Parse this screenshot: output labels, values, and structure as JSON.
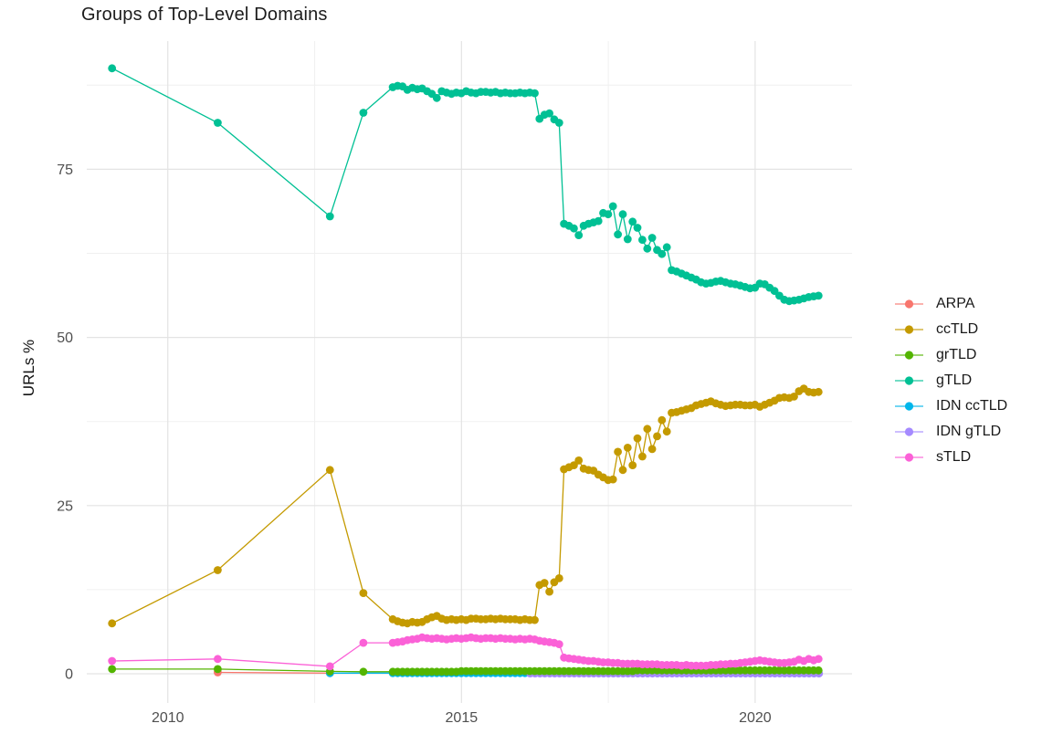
{
  "title": "Groups of Top-Level Domains",
  "colors": {
    "background": "#ffffff",
    "grid_major": "#e3e3e3",
    "grid_minor": "#f0f0f0",
    "axis_text": "#4f4f4f",
    "title_text": "#1c1c1c"
  },
  "chart_data": {
    "type": "line",
    "title": "Groups of Top-Level Domains",
    "xlabel": "",
    "ylabel": "URLs %",
    "grid": true,
    "legend_position": "right",
    "x_range": [
      2008.62,
      2021.65
    ],
    "y_range": [
      -4.34,
      94.05
    ],
    "x_ticks": [
      {
        "value": 2010,
        "label": "2010"
      },
      {
        "value": 2015,
        "label": "2015"
      },
      {
        "value": 2020,
        "label": "2020"
      }
    ],
    "y_ticks": [
      {
        "value": 0,
        "label": "0"
      },
      {
        "value": 25,
        "label": "25"
      },
      {
        "value": 50,
        "label": "50"
      },
      {
        "value": 75,
        "label": "75"
      }
    ],
    "x_minor": [
      2012.5,
      2017.5
    ],
    "y_minor": [
      12.5,
      37.5,
      62.5,
      87.5
    ],
    "series": [
      {
        "name": "ARPA",
        "color": "#F8766D",
        "z": 0,
        "points": [
          [
            2010.85,
            0.2
          ],
          [
            2012.76,
            0.1
          ]
        ]
      },
      {
        "name": "ccTLD",
        "color": "#C49A00",
        "z": 1,
        "points": [
          [
            2009.05,
            7.5
          ],
          [
            2010.85,
            15.4
          ],
          [
            2012.76,
            30.3
          ],
          [
            2013.33,
            12.0
          ]
        ],
        "monthly": {
          "x0": 2013.83,
          "step": 0.08333,
          "y": [
            8.1,
            7.8,
            7.6,
            7.5,
            7.7,
            7.6,
            7.7,
            8.1,
            8.4,
            8.6,
            8.2,
            8.0,
            8.1,
            8.0,
            8.1,
            8.0,
            8.2,
            8.2,
            8.1,
            8.1,
            8.2,
            8.1,
            8.2,
            8.1,
            8.1,
            8.1,
            8.0,
            8.1,
            8.0,
            8.0,
            13.2,
            13.5,
            12.2,
            13.6,
            14.2,
            30.4,
            30.7,
            31.0,
            31.7,
            30.5,
            30.3,
            30.2,
            29.6,
            29.2,
            28.8,
            28.9,
            33.0,
            30.3,
            33.6,
            31.0,
            35.0,
            32.3,
            36.4,
            33.4,
            35.3,
            37.7,
            36.0,
            38.8,
            38.9,
            39.1,
            39.3,
            39.5,
            39.9,
            40.1,
            40.3,
            40.5,
            40.2,
            40.0,
            39.8,
            39.9,
            40.0,
            40.0,
            39.9,
            39.9,
            40.0,
            39.7,
            40.0,
            40.3,
            40.6,
            41.0,
            41.1,
            41.0,
            41.2,
            42.0,
            42.4,
            41.9,
            41.8,
            41.9
          ]
        }
      },
      {
        "name": "grTLD",
        "color": "#53B400",
        "z": 4,
        "points": [
          [
            2009.05,
            0.7
          ],
          [
            2010.85,
            0.7
          ],
          [
            2012.76,
            0.35
          ],
          [
            2013.33,
            0.3
          ]
        ],
        "monthly": {
          "x0": 2013.83,
          "step": 0.08333,
          "y": [
            0.3,
            0.3,
            0.3,
            0.3,
            0.3,
            0.3,
            0.3,
            0.3,
            0.3,
            0.3,
            0.3,
            0.3,
            0.3,
            0.3,
            0.4,
            0.4,
            0.4,
            0.4,
            0.4,
            0.4,
            0.4,
            0.4,
            0.4,
            0.4,
            0.4,
            0.4,
            0.4,
            0.4,
            0.4,
            0.4,
            0.4,
            0.4,
            0.4,
            0.4,
            0.4,
            0.4,
            0.4,
            0.4,
            0.4,
            0.4,
            0.4,
            0.4,
            0.4,
            0.4,
            0.4,
            0.4,
            0.4,
            0.4,
            0.4,
            0.4,
            0.5,
            0.5,
            0.5,
            0.5,
            0.5,
            0.5,
            0.5,
            0.5,
            0.5,
            0.5,
            0.5,
            0.5,
            0.5,
            0.5,
            0.5,
            0.5,
            0.5,
            0.5,
            0.5,
            0.5,
            0.5,
            0.5,
            0.5,
            0.5,
            0.5,
            0.5,
            0.5,
            0.5,
            0.5,
            0.5,
            0.5,
            0.5,
            0.5,
            0.5,
            0.5,
            0.5,
            0.5,
            0.5
          ]
        }
      },
      {
        "name": "gTLD",
        "color": "#00C094",
        "z": 5,
        "points": [
          [
            2009.05,
            90.0
          ],
          [
            2010.85,
            81.9
          ],
          [
            2012.76,
            68.0
          ],
          [
            2013.33,
            83.4
          ]
        ],
        "monthly": {
          "x0": 2013.83,
          "step": 0.08333,
          "y": [
            87.2,
            87.4,
            87.3,
            86.8,
            87.1,
            86.9,
            87.0,
            86.6,
            86.2,
            85.6,
            86.6,
            86.4,
            86.2,
            86.4,
            86.3,
            86.6,
            86.4,
            86.3,
            86.5,
            86.5,
            86.4,
            86.5,
            86.3,
            86.4,
            86.3,
            86.3,
            86.4,
            86.3,
            86.4,
            86.3,
            82.5,
            83.1,
            83.3,
            82.4,
            81.9,
            66.9,
            66.6,
            66.2,
            65.2,
            66.6,
            66.9,
            67.1,
            67.3,
            68.5,
            68.3,
            69.5,
            65.3,
            68.3,
            64.6,
            67.2,
            66.3,
            64.5,
            63.2,
            64.8,
            63.0,
            62.4,
            63.4,
            60.0,
            59.8,
            59.5,
            59.2,
            58.9,
            58.6,
            58.2,
            58.0,
            58.1,
            58.3,
            58.4,
            58.2,
            58.0,
            57.9,
            57.7,
            57.5,
            57.3,
            57.4,
            58.0,
            57.9,
            57.4,
            56.9,
            56.2,
            55.6,
            55.4,
            55.5,
            55.6,
            55.8,
            56.0,
            56.1,
            56.2
          ]
        }
      },
      {
        "name": "IDN ccTLD",
        "color": "#00B6EB",
        "z": 2,
        "points": [
          [
            2012.76,
            0.1
          ]
        ],
        "monthly": {
          "x0": 2013.83,
          "step": 0.08333,
          "count": 88,
          "const": 0.1
        }
      },
      {
        "name": "IDN gTLD",
        "color": "#A58AFF",
        "z": 3,
        "points": [],
        "monthly": {
          "x0": 2016.17,
          "step": 0.08333,
          "count": 60,
          "const": 0.05
        }
      },
      {
        "name": "sTLD",
        "color": "#FB61D7",
        "z": 6,
        "points": [
          [
            2009.05,
            1.9
          ],
          [
            2010.85,
            2.2
          ],
          [
            2012.76,
            1.1
          ],
          [
            2013.33,
            4.6
          ]
        ],
        "monthly": {
          "x0": 2013.83,
          "step": 0.08333,
          "y": [
            4.6,
            4.7,
            4.8,
            5.0,
            5.1,
            5.2,
            5.4,
            5.3,
            5.2,
            5.3,
            5.2,
            5.1,
            5.2,
            5.3,
            5.2,
            5.3,
            5.4,
            5.3,
            5.2,
            5.3,
            5.3,
            5.2,
            5.3,
            5.2,
            5.2,
            5.1,
            5.2,
            5.1,
            5.2,
            5.1,
            4.9,
            4.8,
            4.7,
            4.6,
            4.4,
            2.4,
            2.3,
            2.2,
            2.1,
            2.0,
            1.9,
            1.9,
            1.8,
            1.7,
            1.7,
            1.6,
            1.6,
            1.5,
            1.5,
            1.5,
            1.5,
            1.4,
            1.4,
            1.4,
            1.4,
            1.3,
            1.3,
            1.3,
            1.3,
            1.2,
            1.3,
            1.2,
            1.2,
            1.2,
            1.2,
            1.3,
            1.3,
            1.4,
            1.4,
            1.5,
            1.5,
            1.6,
            1.7,
            1.8,
            1.9,
            2.0,
            1.9,
            1.8,
            1.7,
            1.6,
            1.6,
            1.7,
            1.8,
            2.1,
            1.9,
            2.2,
            2.0,
            2.2
          ]
        }
      }
    ]
  }
}
